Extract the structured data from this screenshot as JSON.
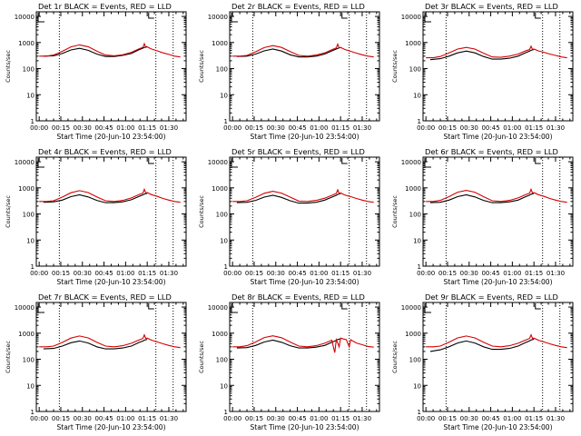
{
  "chart_data": [
    {
      "type": "line",
      "title": "Det 1r BLACK = Events, RED = LLD",
      "xlabel": "Start Time (20-Jun-10 23:54:00)",
      "ylabel": "Counts/sec",
      "x_ticks": [
        "00:00",
        "00:15",
        "00:30",
        "00:45",
        "01:00",
        "01:15",
        "01:30"
      ],
      "y_ticks": [
        "1",
        "10",
        "100",
        "1000",
        "10000"
      ],
      "ylim": [
        1,
        15000
      ],
      "xlim_minutes": [
        -2,
        102
      ],
      "log_y": true,
      "vlines_minutes": [
        14,
        81,
        93
      ],
      "series": [
        {
          "name": "Events",
          "color": "#000000",
          "x": [
            3,
            10,
            16,
            22,
            28,
            34,
            40,
            46,
            52,
            58,
            64,
            69,
            72,
            73,
            75
          ],
          "y": [
            300,
            310,
            380,
            520,
            600,
            500,
            360,
            290,
            290,
            320,
            380,
            520,
            610,
            650,
            700
          ]
        },
        {
          "name": "LLD",
          "color": "#d40000",
          "x": [
            0,
            5,
            10,
            16,
            22,
            28,
            34,
            40,
            46,
            52,
            58,
            64,
            69,
            72,
            73,
            74,
            75,
            78,
            82,
            86,
            90,
            94,
            98
          ],
          "y": [
            300,
            300,
            330,
            460,
            680,
            810,
            690,
            470,
            330,
            310,
            340,
            420,
            560,
            650,
            900,
            650,
            680,
            560,
            480,
            400,
            350,
            300,
            280
          ]
        }
      ]
    },
    {
      "type": "line",
      "title": "Det 2r BLACK = Events, RED = LLD",
      "xlabel": "Start Time (20-Jun-10 23:54:00)",
      "ylabel": "Counts/sec",
      "x_ticks": [
        "00:00",
        "00:15",
        "00:30",
        "00:45",
        "01:00",
        "01:15",
        "01:30"
      ],
      "y_ticks": [
        "1",
        "10",
        "100",
        "1000",
        "10000"
      ],
      "ylim": [
        1,
        15000
      ],
      "xlim_minutes": [
        -2,
        102
      ],
      "log_y": true,
      "vlines_minutes": [
        14,
        81,
        93
      ],
      "series": [
        {
          "name": "Events",
          "color": "#000000",
          "x": [
            3,
            10,
            16,
            22,
            28,
            34,
            40,
            46,
            52,
            58,
            64,
            69,
            72,
            73,
            75
          ],
          "y": [
            290,
            300,
            360,
            480,
            560,
            470,
            340,
            280,
            280,
            300,
            360,
            480,
            560,
            600,
            650
          ]
        },
        {
          "name": "LLD",
          "color": "#d40000",
          "x": [
            0,
            5,
            10,
            16,
            22,
            28,
            34,
            40,
            46,
            52,
            58,
            64,
            69,
            72,
            73,
            74,
            75,
            78,
            82,
            86,
            90,
            94,
            98
          ],
          "y": [
            300,
            300,
            320,
            440,
            640,
            760,
            650,
            450,
            320,
            300,
            330,
            400,
            530,
            620,
            860,
            620,
            650,
            540,
            460,
            390,
            340,
            300,
            280
          ]
        }
      ]
    },
    {
      "type": "line",
      "title": "Det 3r BLACK = Events, RED = LLD",
      "xlabel": "Start Time (20-Jun-10 23:54:00)",
      "ylabel": "Counts/sec",
      "x_ticks": [
        "00:00",
        "00:15",
        "00:30",
        "00:45",
        "01:00",
        "01:15",
        "01:30"
      ],
      "y_ticks": [
        "1",
        "10",
        "100",
        "1000",
        "10000"
      ],
      "ylim": [
        1,
        15000
      ],
      "xlim_minutes": [
        -2,
        102
      ],
      "log_y": true,
      "vlines_minutes": [
        14,
        81,
        93
      ],
      "series": [
        {
          "name": "Events",
          "color": "#000000",
          "x": [
            3,
            10,
            16,
            22,
            28,
            34,
            40,
            46,
            52,
            58,
            64,
            69,
            72,
            73,
            75
          ],
          "y": [
            220,
            240,
            300,
            400,
            470,
            400,
            290,
            230,
            230,
            250,
            300,
            400,
            470,
            500,
            540
          ]
        },
        {
          "name": "LLD",
          "color": "#d40000",
          "x": [
            0,
            5,
            10,
            16,
            22,
            28,
            34,
            40,
            46,
            52,
            58,
            64,
            69,
            72,
            73,
            74,
            75,
            78,
            82,
            86,
            90,
            94,
            98
          ],
          "y": [
            260,
            260,
            290,
            400,
            560,
            650,
            560,
            390,
            280,
            270,
            300,
            360,
            470,
            540,
            720,
            540,
            560,
            480,
            420,
            360,
            320,
            280,
            260
          ]
        }
      ]
    },
    {
      "type": "line",
      "title": "Det 4r BLACK = Events, RED = LLD",
      "xlabel": "Start Time (20-Jun-10 23:54:00)",
      "ylabel": "Counts/sec",
      "x_ticks": [
        "00:00",
        "00:15",
        "00:30",
        "00:45",
        "01:00",
        "01:15",
        "01:30"
      ],
      "y_ticks": [
        "1",
        "10",
        "100",
        "1000",
        "10000"
      ],
      "ylim": [
        1,
        15000
      ],
      "xlim_minutes": [
        -2,
        102
      ],
      "log_y": true,
      "vlines_minutes": [
        14,
        81,
        93
      ],
      "series": [
        {
          "name": "Events",
          "color": "#000000",
          "x": [
            3,
            10,
            16,
            22,
            28,
            34,
            40,
            46,
            52,
            58,
            64,
            69,
            72,
            73,
            75
          ],
          "y": [
            280,
            290,
            340,
            460,
            540,
            450,
            330,
            270,
            270,
            290,
            350,
            460,
            540,
            580,
            620
          ]
        },
        {
          "name": "LLD",
          "color": "#d40000",
          "x": [
            0,
            5,
            10,
            16,
            22,
            28,
            34,
            40,
            46,
            52,
            58,
            64,
            69,
            72,
            73,
            74,
            75,
            78,
            82,
            86,
            90,
            94,
            98
          ],
          "y": [
            300,
            300,
            320,
            440,
            650,
            780,
            660,
            450,
            320,
            300,
            330,
            410,
            540,
            630,
            880,
            630,
            660,
            550,
            470,
            390,
            340,
            300,
            280
          ]
        }
      ]
    },
    {
      "type": "line",
      "title": "Det 5r BLACK = Events, RED = LLD",
      "xlabel": "Start Time (20-Jun-10 23:54:00)",
      "ylabel": "Counts/sec",
      "x_ticks": [
        "00:00",
        "00:15",
        "00:30",
        "00:45",
        "01:00",
        "01:15",
        "01:30"
      ],
      "y_ticks": [
        "1",
        "10",
        "100",
        "1000",
        "10000"
      ],
      "ylim": [
        1,
        15000
      ],
      "xlim_minutes": [
        -2,
        102
      ],
      "log_y": true,
      "vlines_minutes": [
        14,
        81,
        93
      ],
      "series": [
        {
          "name": "Events",
          "color": "#000000",
          "x": [
            3,
            10,
            16,
            22,
            28,
            34,
            40,
            46,
            52,
            58,
            64,
            69,
            72,
            73,
            75
          ],
          "y": [
            270,
            280,
            330,
            440,
            520,
            430,
            320,
            260,
            260,
            280,
            340,
            440,
            520,
            560,
            600
          ]
        },
        {
          "name": "LLD",
          "color": "#d40000",
          "x": [
            0,
            5,
            10,
            16,
            22,
            28,
            34,
            40,
            46,
            52,
            58,
            64,
            69,
            72,
            73,
            74,
            75,
            78,
            82,
            86,
            90,
            94,
            98
          ],
          "y": [
            300,
            300,
            320,
            430,
            620,
            740,
            630,
            440,
            310,
            300,
            330,
            400,
            520,
            610,
            840,
            610,
            640,
            530,
            460,
            390,
            340,
            300,
            280
          ]
        }
      ]
    },
    {
      "type": "line",
      "title": "Det 6r BLACK = Events, RED = LLD",
      "xlabel": "Start Time (20-Jun-10 23:54:00)",
      "ylabel": "Counts/sec",
      "x_ticks": [
        "00:00",
        "00:15",
        "00:30",
        "00:45",
        "01:00",
        "01:15",
        "01:30"
      ],
      "y_ticks": [
        "1",
        "10",
        "100",
        "1000",
        "10000"
      ],
      "ylim": [
        1,
        15000
      ],
      "xlim_minutes": [
        -2,
        102
      ],
      "log_y": true,
      "vlines_minutes": [
        14,
        81,
        93
      ],
      "series": [
        {
          "name": "Events",
          "color": "#000000",
          "x": [
            3,
            10,
            16,
            22,
            28,
            34,
            40,
            46,
            52,
            58,
            64,
            69,
            72,
            73,
            75
          ],
          "y": [
            270,
            280,
            340,
            460,
            540,
            450,
            330,
            270,
            270,
            290,
            340,
            450,
            530,
            570,
            610
          ]
        },
        {
          "name": "LLD",
          "color": "#d40000",
          "x": [
            0,
            5,
            10,
            16,
            22,
            28,
            34,
            40,
            46,
            52,
            58,
            64,
            69,
            72,
            73,
            74,
            75,
            78,
            82,
            86,
            90,
            94,
            98
          ],
          "y": [
            300,
            300,
            330,
            460,
            680,
            800,
            680,
            460,
            320,
            300,
            330,
            410,
            540,
            630,
            880,
            630,
            660,
            550,
            470,
            390,
            340,
            300,
            280
          ]
        }
      ]
    },
    {
      "type": "line",
      "title": "Det 7r BLACK = Events, RED = LLD",
      "xlabel": "Start Time (20-Jun-10 23:54:00)",
      "ylabel": "Counts/sec",
      "x_ticks": [
        "00:00",
        "00:15",
        "00:30",
        "00:45",
        "01:00",
        "01:15",
        "01:30"
      ],
      "y_ticks": [
        "1",
        "10",
        "100",
        "1000",
        "10000"
      ],
      "ylim": [
        1,
        15000
      ],
      "xlim_minutes": [
        -2,
        102
      ],
      "log_y": true,
      "vlines_minutes": [
        14,
        81,
        93
      ],
      "series": [
        {
          "name": "Events",
          "color": "#000000",
          "x": [
            3,
            10,
            16,
            22,
            28,
            34,
            40,
            46,
            52,
            58,
            64,
            69,
            72,
            73,
            75
          ],
          "y": [
            250,
            260,
            320,
            430,
            500,
            420,
            300,
            250,
            250,
            270,
            320,
            430,
            500,
            540,
            580
          ]
        },
        {
          "name": "LLD",
          "color": "#d40000",
          "x": [
            0,
            5,
            10,
            16,
            22,
            28,
            34,
            40,
            46,
            52,
            58,
            64,
            69,
            72,
            73,
            74,
            75,
            78,
            82,
            86,
            90,
            94,
            98
          ],
          "y": [
            300,
            300,
            320,
            440,
            650,
            780,
            660,
            450,
            320,
            300,
            330,
            410,
            540,
            630,
            860,
            630,
            650,
            540,
            460,
            390,
            340,
            300,
            280
          ]
        }
      ]
    },
    {
      "type": "line",
      "title": "Det 8r BLACK = Events, RED = LLD",
      "xlabel": "Start Time (20-Jun-10 23:54:00)",
      "ylabel": "Counts/sec",
      "x_ticks": [
        "00:00",
        "00:15",
        "00:30",
        "00:45",
        "01:00",
        "01:15",
        "01:30"
      ],
      "y_ticks": [
        "1",
        "10",
        "100",
        "1000",
        "10000"
      ],
      "ylim": [
        1,
        15000
      ],
      "xlim_minutes": [
        -2,
        102
      ],
      "log_y": true,
      "vlines_minutes": [
        14,
        81,
        93
      ],
      "series": [
        {
          "name": "Events",
          "color": "#000000",
          "x": [
            3,
            10,
            16,
            22,
            28,
            34,
            40,
            46,
            52,
            58,
            64,
            69,
            72,
            73,
            75
          ],
          "y": [
            270,
            280,
            340,
            460,
            540,
            450,
            330,
            270,
            270,
            290,
            340,
            450,
            530,
            570,
            610
          ]
        },
        {
          "name": "LLD",
          "color": "#d40000",
          "x": [
            0,
            5,
            10,
            16,
            22,
            28,
            34,
            40,
            46,
            52,
            58,
            64,
            69,
            70,
            71,
            72,
            73,
            74,
            75,
            77,
            79,
            81,
            82,
            83,
            86,
            90,
            94,
            98
          ],
          "y": [
            300,
            300,
            330,
            460,
            680,
            790,
            670,
            460,
            320,
            300,
            330,
            410,
            540,
            300,
            180,
            560,
            420,
            300,
            650,
            600,
            560,
            300,
            560,
            520,
            420,
            360,
            310,
            290
          ]
        }
      ]
    },
    {
      "type": "line",
      "title": "Det 9r BLACK = Events, RED = LLD",
      "xlabel": "Start Time (20-Jun-10 23:54:00)",
      "ylabel": "Counts/sec",
      "x_ticks": [
        "00:00",
        "00:15",
        "00:30",
        "00:45",
        "01:00",
        "01:15",
        "01:30"
      ],
      "y_ticks": [
        "1",
        "10",
        "100",
        "1000",
        "10000"
      ],
      "ylim": [
        1,
        15000
      ],
      "xlim_minutes": [
        -2,
        102
      ],
      "log_y": true,
      "vlines_minutes": [
        14,
        81,
        93
      ],
      "series": [
        {
          "name": "Events",
          "color": "#000000",
          "x": [
            3,
            10,
            16,
            22,
            28,
            34,
            40,
            46,
            52,
            58,
            64,
            69,
            72,
            73,
            75
          ],
          "y": [
            200,
            230,
            300,
            420,
            500,
            420,
            300,
            240,
            240,
            260,
            320,
            430,
            510,
            550,
            590
          ]
        },
        {
          "name": "LLD",
          "color": "#d40000",
          "x": [
            0,
            5,
            10,
            16,
            22,
            28,
            34,
            40,
            46,
            52,
            58,
            64,
            69,
            72,
            73,
            74,
            75,
            78,
            82,
            86,
            90,
            94,
            98
          ],
          "y": [
            300,
            300,
            320,
            450,
            660,
            780,
            660,
            450,
            320,
            300,
            330,
            410,
            540,
            630,
            860,
            630,
            650,
            540,
            460,
            390,
            340,
            300,
            280
          ]
        }
      ]
    }
  ]
}
